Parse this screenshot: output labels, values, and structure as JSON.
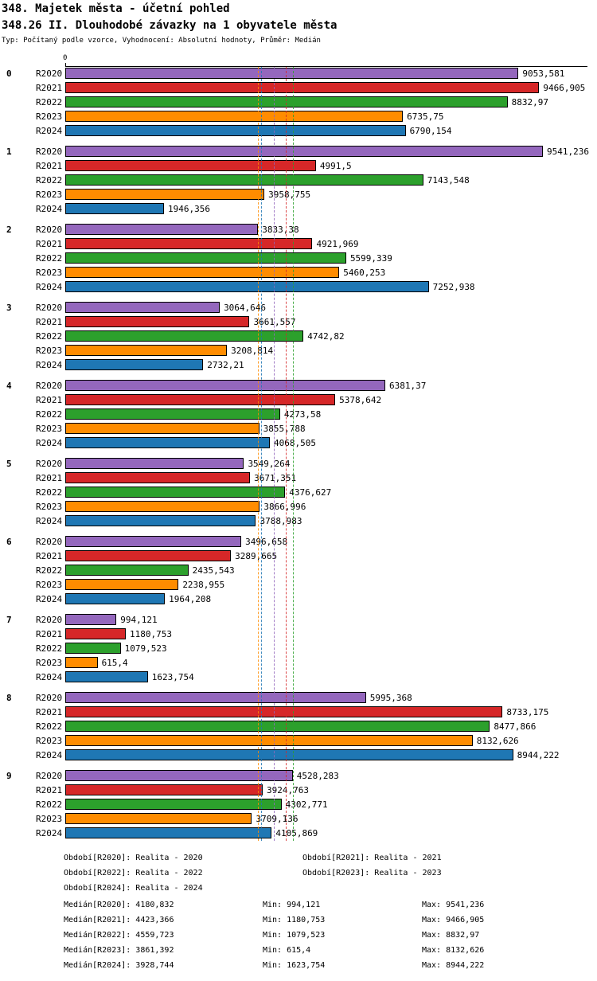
{
  "header": {
    "title1": "348. Majetek města - účetní pohled",
    "title2": "348.26 II. Dlouhodobé závazky na 1 obyvatele města",
    "subtitle": "Typ: Počítaný podle vzorce, Vyhodnocení: Absolutní hodnoty, Průměr: Medián"
  },
  "chart_data": {
    "type": "bar",
    "orientation": "horizontal",
    "title": "348.26 II. Dlouhodobé závazky na 1 obyvatele města",
    "axis": {
      "origin_label": "0",
      "max": 9541.236
    },
    "grid": "median-markers-only",
    "legend_position": "bottom",
    "categories": [
      "0",
      "1",
      "2",
      "3",
      "4",
      "5",
      "6",
      "7",
      "8",
      "9"
    ],
    "series": [
      {
        "name": "R2020",
        "period_label": "Období[R2020]: Realita - 2020",
        "color": "#9467bd",
        "median": 4180.832,
        "values": [
          9053.581,
          9541.236,
          3833.38,
          3064.646,
          6381.37,
          3549.264,
          3496.658,
          994.121,
          5995.368,
          4528.283
        ],
        "labels": [
          "9053,581",
          "9541,236",
          "3833,38",
          "3064,646",
          "6381,37",
          "3549,264",
          "3496,658",
          "994,121",
          "5995,368",
          "4528,283"
        ]
      },
      {
        "name": "R2021",
        "period_label": "Období[R2021]: Realita - 2021",
        "color": "#d62728",
        "median": 4423.366,
        "values": [
          9466.905,
          4991.5,
          4921.969,
          3661.557,
          5378.642,
          3671.351,
          3289.665,
          1180.753,
          8733.175,
          3924.763
        ],
        "labels": [
          "9466,905",
          "4991,5",
          "4921,969",
          "3661,557",
          "5378,642",
          "3671,351",
          "3289,665",
          "1180,753",
          "8733,175",
          "3924,763"
        ]
      },
      {
        "name": "R2022",
        "period_label": "Období[R2022]: Realita - 2022",
        "color": "#2ca02c",
        "median": 4559.723,
        "values": [
          8832.97,
          7143.548,
          5599.339,
          4742.82,
          4273.58,
          4376.627,
          2435.543,
          1079.523,
          8477.866,
          4302.771
        ],
        "labels": [
          "8832,97",
          "7143,548",
          "5599,339",
          "4742,82",
          "4273,58",
          "4376,627",
          "2435,543",
          "1079,523",
          "8477,866",
          "4302,771"
        ]
      },
      {
        "name": "R2023",
        "period_label": "Období[R2023]: Realita - 2023",
        "color": "#ff8c00",
        "median": 3861.392,
        "values": [
          6735.75,
          3958.755,
          5460.253,
          3208.814,
          3855.788,
          3866.996,
          2238.955,
          615.4,
          8132.626,
          3709.136
        ],
        "labels": [
          "6735,75",
          "3958,755",
          "5460,253",
          "3208,814",
          "3855,788",
          "3866,996",
          "2238,955",
          "615,4",
          "8132,626",
          "3709,136"
        ]
      },
      {
        "name": "R2024",
        "period_label": "Období[R2024]: Realita - 2024",
        "color": "#1f77b4",
        "median": 3928.744,
        "values": [
          6790.154,
          1946.356,
          7252.938,
          2732.21,
          4068.505,
          3788.983,
          1964.208,
          1623.754,
          8944.222,
          4105.869
        ],
        "labels": [
          "6790,154",
          "1946,356",
          "7252,938",
          "2732,21",
          "4068,505",
          "3788,983",
          "1964,208",
          "1623,754",
          "8944,222",
          "4105,869"
        ]
      }
    ]
  },
  "legend": {
    "periods": [
      "Období[R2020]: Realita - 2020",
      "Období[R2021]: Realita - 2021",
      "Období[R2022]: Realita - 2022",
      "Období[R2023]: Realita - 2023",
      "Období[R2024]: Realita - 2024"
    ],
    "stats": [
      {
        "median": "Medián[R2020]: 4180,832",
        "min": "Min: 994,121",
        "max": "Max: 9541,236"
      },
      {
        "median": "Medián[R2021]: 4423,366",
        "min": "Min: 1180,753",
        "max": "Max: 9466,905"
      },
      {
        "median": "Medián[R2022]: 4559,723",
        "min": "Min: 1079,523",
        "max": "Max: 8832,97"
      },
      {
        "median": "Medián[R2023]: 3861,392",
        "min": "Min: 615,4",
        "max": "Max: 8132,626"
      },
      {
        "median": "Medián[R2024]: 3928,744",
        "min": "Min: 1623,754",
        "max": "Max: 8944,222"
      }
    ]
  }
}
